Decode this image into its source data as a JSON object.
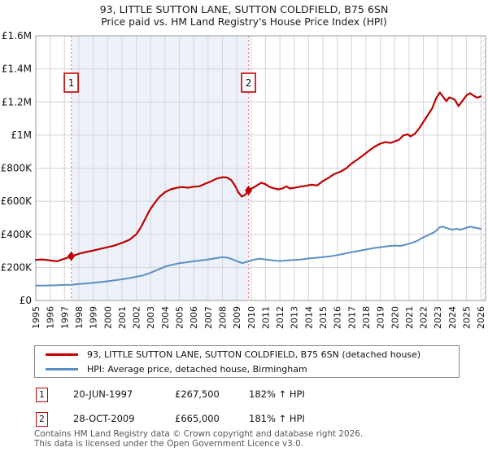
{
  "header": {
    "title_line1": "93, LITTLE SUTTON LANE, SUTTON COLDFIELD, B75 6SN",
    "title_line2": "Price paid vs. HM Land Registry's House Price Index (HPI)"
  },
  "colors": {
    "price_line": "#c00000",
    "hpi_line": "#5b8ec4",
    "event_dashed_line": "#f08080",
    "owned_shade": "#edf2fa",
    "grid": "#d4d4d4",
    "plot_border": "#9a9a9a",
    "marker_box_border": "#c00000",
    "hatch": "#c8c8c8",
    "marker_fill": "#c00000"
  },
  "chart_data": {
    "type": "line",
    "title": "93, LITTLE SUTTON LANE, SUTTON COLDFIELD, B75 6SN",
    "subtitle": "Price paid vs. HM Land Registry's House Price Index (HPI)",
    "xlabel": "",
    "ylabel": "",
    "x_range": [
      1995,
      2026
    ],
    "y_range": [
      0,
      1600000
    ],
    "grid": true,
    "legend_position": "bottom",
    "x_ticks": [
      1995,
      1996,
      1997,
      1998,
      1999,
      2000,
      2001,
      2002,
      2003,
      2004,
      2005,
      2006,
      2007,
      2008,
      2009,
      2010,
      2011,
      2012,
      2013,
      2014,
      2015,
      2016,
      2017,
      2018,
      2019,
      2020,
      2021,
      2022,
      2023,
      2024,
      2025,
      2026
    ],
    "y_ticks": [
      {
        "value": 0,
        "label": "£0"
      },
      {
        "value": 200000,
        "label": "£200K"
      },
      {
        "value": 400000,
        "label": "£400K"
      },
      {
        "value": 600000,
        "label": "£600K"
      },
      {
        "value": 800000,
        "label": "£800K"
      },
      {
        "value": 1000000,
        "label": "£1M"
      },
      {
        "value": 1200000,
        "label": "£1.2M"
      },
      {
        "value": 1400000,
        "label": "£1.4M"
      },
      {
        "value": 1600000,
        "label": "£1.6M"
      }
    ],
    "owned_region": [
      1997.47,
      2009.82
    ],
    "future_hatch_from": 2026,
    "series": [
      {
        "name": "93, LITTLE SUTTON LANE, SUTTON COLDFIELD, B75 6SN (detached house)",
        "color_key": "price_line",
        "points": [
          [
            1995.0,
            245000
          ],
          [
            1995.4,
            248000
          ],
          [
            1995.8,
            244000
          ],
          [
            1996.2,
            240000
          ],
          [
            1996.5,
            237000
          ],
          [
            1996.8,
            247000
          ],
          [
            1997.1,
            255000
          ],
          [
            1997.47,
            267500
          ],
          [
            1997.8,
            276000
          ],
          [
            1998.1,
            285000
          ],
          [
            1998.5,
            293000
          ],
          [
            1999.0,
            302000
          ],
          [
            1999.5,
            312000
          ],
          [
            2000.0,
            322000
          ],
          [
            2000.5,
            333000
          ],
          [
            2001.0,
            348000
          ],
          [
            2001.5,
            366000
          ],
          [
            2002.0,
            400000
          ],
          [
            2002.3,
            440000
          ],
          [
            2002.6,
            490000
          ],
          [
            2002.9,
            540000
          ],
          [
            2003.2,
            580000
          ],
          [
            2003.6,
            625000
          ],
          [
            2004.0,
            655000
          ],
          [
            2004.4,
            672000
          ],
          [
            2004.8,
            681000
          ],
          [
            2005.2,
            686000
          ],
          [
            2005.6,
            682000
          ],
          [
            2006.0,
            688000
          ],
          [
            2006.4,
            690000
          ],
          [
            2006.8,
            706000
          ],
          [
            2007.2,
            720000
          ],
          [
            2007.6,
            737000
          ],
          [
            2008.0,
            745000
          ],
          [
            2008.3,
            744000
          ],
          [
            2008.6,
            729000
          ],
          [
            2008.9,
            690000
          ],
          [
            2009.1,
            655000
          ],
          [
            2009.35,
            628000
          ],
          [
            2009.6,
            640000
          ],
          [
            2009.82,
            665000
          ],
          [
            2010.1,
            680000
          ],
          [
            2010.4,
            695000
          ],
          [
            2010.7,
            712000
          ],
          [
            2011.0,
            703000
          ],
          [
            2011.3,
            686000
          ],
          [
            2011.6,
            678000
          ],
          [
            2011.9,
            672000
          ],
          [
            2012.2,
            678000
          ],
          [
            2012.45,
            690000
          ],
          [
            2012.7,
            677000
          ],
          [
            2013.0,
            681000
          ],
          [
            2013.4,
            688000
          ],
          [
            2013.8,
            693000
          ],
          [
            2014.2,
            700000
          ],
          [
            2014.6,
            695000
          ],
          [
            2015.0,
            722000
          ],
          [
            2015.4,
            742000
          ],
          [
            2015.8,
            765000
          ],
          [
            2016.2,
            778000
          ],
          [
            2016.6,
            798000
          ],
          [
            2017.0,
            828000
          ],
          [
            2017.4,
            852000
          ],
          [
            2017.8,
            878000
          ],
          [
            2018.2,
            905000
          ],
          [
            2018.6,
            930000
          ],
          [
            2019.0,
            948000
          ],
          [
            2019.35,
            958000
          ],
          [
            2019.7,
            952000
          ],
          [
            2020.0,
            962000
          ],
          [
            2020.3,
            972000
          ],
          [
            2020.6,
            998000
          ],
          [
            2020.9,
            1005000
          ],
          [
            2021.1,
            992000
          ],
          [
            2021.4,
            1008000
          ],
          [
            2021.7,
            1040000
          ],
          [
            2022.0,
            1080000
          ],
          [
            2022.3,
            1120000
          ],
          [
            2022.6,
            1160000
          ],
          [
            2022.9,
            1225000
          ],
          [
            2023.15,
            1258000
          ],
          [
            2023.4,
            1228000
          ],
          [
            2023.6,
            1205000
          ],
          [
            2023.8,
            1228000
          ],
          [
            2024.0,
            1222000
          ],
          [
            2024.2,
            1212000
          ],
          [
            2024.45,
            1175000
          ],
          [
            2024.7,
            1205000
          ],
          [
            2025.0,
            1240000
          ],
          [
            2025.25,
            1253000
          ],
          [
            2025.5,
            1238000
          ],
          [
            2025.75,
            1226000
          ],
          [
            2026.0,
            1234000
          ]
        ]
      },
      {
        "name": "HPI: Average price, detached house, Birmingham",
        "color_key": "hpi_line",
        "points": [
          [
            1995.0,
            90000
          ],
          [
            1995.5,
            90000
          ],
          [
            1996.0,
            91000
          ],
          [
            1996.5,
            92000
          ],
          [
            1997.0,
            94000
          ],
          [
            1997.47,
            95000
          ],
          [
            1998.0,
            100000
          ],
          [
            1998.5,
            103000
          ],
          [
            1999.0,
            107000
          ],
          [
            1999.5,
            111000
          ],
          [
            2000.0,
            116000
          ],
          [
            2000.5,
            122000
          ],
          [
            2001.0,
            128000
          ],
          [
            2001.5,
            135000
          ],
          [
            2002.0,
            144000
          ],
          [
            2002.5,
            152000
          ],
          [
            2003.0,
            168000
          ],
          [
            2003.5,
            186000
          ],
          [
            2004.0,
            205000
          ],
          [
            2004.5,
            216000
          ],
          [
            2005.0,
            225000
          ],
          [
            2005.5,
            231000
          ],
          [
            2006.0,
            237000
          ],
          [
            2006.5,
            242000
          ],
          [
            2007.0,
            248000
          ],
          [
            2007.5,
            255000
          ],
          [
            2008.0,
            262000
          ],
          [
            2008.4,
            258000
          ],
          [
            2008.8,
            245000
          ],
          [
            2009.1,
            234000
          ],
          [
            2009.4,
            226000
          ],
          [
            2009.82,
            237000
          ],
          [
            2010.2,
            247000
          ],
          [
            2010.6,
            252000
          ],
          [
            2011.0,
            248000
          ],
          [
            2011.5,
            242000
          ],
          [
            2012.0,
            239000
          ],
          [
            2012.5,
            242000
          ],
          [
            2013.0,
            245000
          ],
          [
            2013.5,
            248000
          ],
          [
            2014.0,
            254000
          ],
          [
            2014.5,
            258000
          ],
          [
            2015.0,
            262000
          ],
          [
            2015.5,
            267000
          ],
          [
            2016.0,
            274000
          ],
          [
            2016.5,
            283000
          ],
          [
            2017.0,
            292000
          ],
          [
            2017.5,
            300000
          ],
          [
            2018.0,
            308000
          ],
          [
            2018.5,
            316000
          ],
          [
            2019.0,
            322000
          ],
          [
            2019.5,
            328000
          ],
          [
            2020.0,
            332000
          ],
          [
            2020.4,
            330000
          ],
          [
            2020.8,
            338000
          ],
          [
            2021.2,
            348000
          ],
          [
            2021.6,
            362000
          ],
          [
            2022.0,
            382000
          ],
          [
            2022.4,
            398000
          ],
          [
            2022.8,
            415000
          ],
          [
            2023.1,
            440000
          ],
          [
            2023.35,
            447000
          ],
          [
            2023.6,
            438000
          ],
          [
            2024.0,
            428000
          ],
          [
            2024.3,
            433000
          ],
          [
            2024.6,
            428000
          ],
          [
            2025.0,
            440000
          ],
          [
            2025.3,
            446000
          ],
          [
            2025.6,
            440000
          ],
          [
            2026.0,
            433000
          ]
        ]
      }
    ],
    "markers": [
      {
        "label": "1",
        "year": 1997.47,
        "value": 267500
      },
      {
        "label": "2",
        "year": 2009.82,
        "value": 665000
      }
    ]
  },
  "transactions": [
    {
      "num": "1",
      "date": "20-JUN-1997",
      "price": "£267,500",
      "vs_hpi": "182% ↑ HPI"
    },
    {
      "num": "2",
      "date": "28-OCT-2009",
      "price": "£665,000",
      "vs_hpi": "181% ↑ HPI"
    }
  ],
  "footer": {
    "line1": "Contains HM Land Registry data © Crown copyright and database right 2026.",
    "line2": "This data is licensed under the Open Government Licence v3.0."
  }
}
